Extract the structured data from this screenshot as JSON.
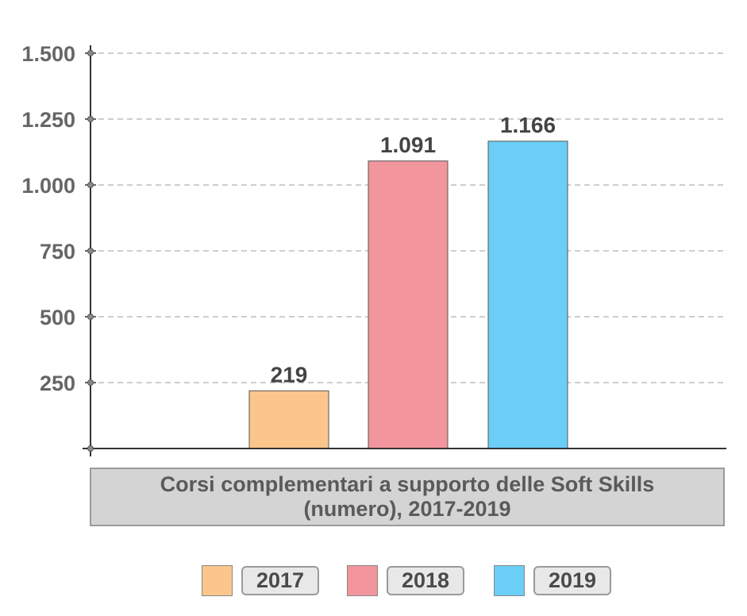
{
  "chart_data": {
    "type": "bar",
    "title_lines": [
      "Corsi complementari a supporto delle Soft Skills",
      "(numero), 2017-2019"
    ],
    "categories": [
      "2017",
      "2018",
      "2019"
    ],
    "values": [
      219,
      1091,
      1166
    ],
    "value_labels": [
      "219",
      "1.091",
      "1.166"
    ],
    "colors": [
      "#fac68b",
      "#f2959c",
      "#6acef6"
    ],
    "ylim": [
      0,
      1500
    ],
    "yticks": [
      250,
      500,
      750,
      1000,
      1250,
      1500
    ],
    "ytick_labels": [
      "250",
      "500",
      "750",
      "1.000",
      "1.250",
      "1.500"
    ],
    "grid": true,
    "legend_position": "bottom",
    "legend": [
      {
        "label": "2017",
        "color": "#fac68b"
      },
      {
        "label": "2018",
        "color": "#f2959c"
      },
      {
        "label": "2019",
        "color": "#6acef6"
      }
    ]
  }
}
